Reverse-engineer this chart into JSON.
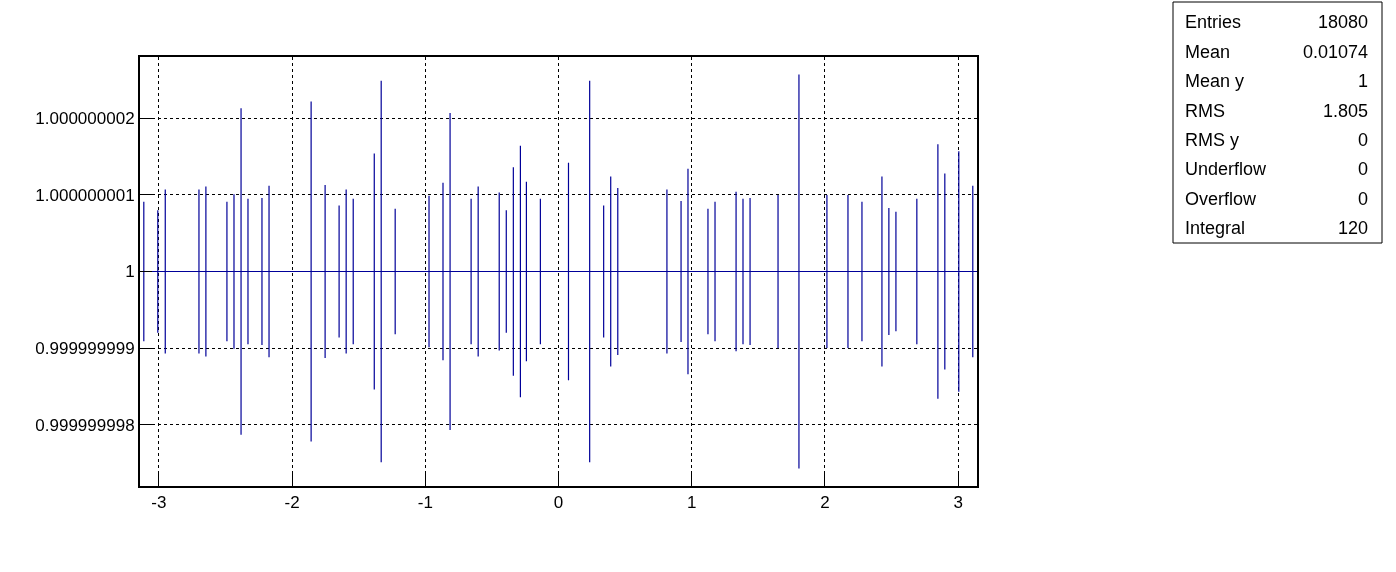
{
  "chart_data": {
    "type": "line",
    "xlim": [
      -3.1416,
      3.1416
    ],
    "xticks": [
      -3,
      -2,
      -1,
      0,
      1,
      2,
      3
    ],
    "ylim": [
      0.9999999972,
      1.0000000028
    ],
    "yticks": [
      {
        "value": 0.999999998,
        "label": "0.999999998"
      },
      {
        "value": 0.999999999,
        "label": "0.999999999"
      },
      {
        "value": 1,
        "label": "1"
      },
      {
        "value": 1.000000001,
        "label": "1.000000001"
      },
      {
        "value": 1.000000002,
        "label": "1.000000002"
      }
    ],
    "grid": true,
    "marker": "none",
    "line_style": "solid",
    "series": [
      {
        "color": "#000099",
        "x": [
          -3.1416,
          -3.113,
          -3.008,
          -2.952,
          -2.699,
          -2.647,
          -2.489,
          -2.436,
          -2.383,
          -2.331,
          -2.226,
          -2.173,
          -1.857,
          -1.752,
          -1.647,
          -1.594,
          -1.541,
          -1.383,
          -1.331,
          -1.226,
          -0.972,
          -0.867,
          -0.814,
          -0.656,
          -0.603,
          -0.445,
          -0.392,
          -0.339,
          -0.286,
          -0.241,
          -0.136,
          0.075,
          0.234,
          0.339,
          0.392,
          0.445,
          0.814,
          0.92,
          0.972,
          1.122,
          1.175,
          1.333,
          1.385,
          1.438,
          1.648,
          1.805,
          2.015,
          2.173,
          2.278,
          2.428,
          2.48,
          2.533,
          2.69,
          2.848,
          2.9,
          3.005,
          3.11,
          3.1416
        ],
        "values": [
          1,
          1,
          1,
          1,
          1,
          1,
          1,
          1,
          1,
          1,
          1,
          1,
          1,
          1,
          1,
          1,
          1,
          1,
          1,
          1,
          1,
          1,
          1,
          1,
          1,
          1,
          1,
          1,
          1,
          1,
          1,
          1,
          1,
          1,
          1,
          1,
          1,
          1,
          1,
          1,
          1,
          1,
          1,
          1,
          1,
          1,
          1,
          1,
          1,
          1,
          1,
          1,
          1,
          1,
          1,
          1,
          1,
          1
        ],
        "errors": [
          null,
          9.1e-10,
          8e-10,
          1.07e-09,
          1.07e-09,
          1.11e-09,
          9.1e-10,
          1.01e-09,
          2.13e-09,
          9.5e-10,
          9.6e-10,
          1.12e-09,
          2.22e-09,
          1.13e-09,
          8.6e-10,
          1.07e-09,
          9.5e-10,
          1.54e-09,
          2.49e-09,
          8.2e-10,
          9.9e-10,
          1.16e-09,
          2.07e-09,
          9.5e-10,
          1.11e-09,
          1.03e-09,
          8e-10,
          1.36e-09,
          1.64e-09,
          1.17e-09,
          9.5e-10,
          1.42e-09,
          2.49e-09,
          8.6e-10,
          1.24e-09,
          1.09e-09,
          1.07e-09,
          9.2e-10,
          1.34e-09,
          8.2e-10,
          9.1e-10,
          1.04e-09,
          9.5e-10,
          9.6e-10,
          1e-09,
          2.57e-09,
          1e-09,
          1e-09,
          9.1e-10,
          1.24e-09,
          8.3e-10,
          7.8e-10,
          9.5e-10,
          1.66e-09,
          1.28e-09,
          1.57e-09,
          1.12e-09,
          null
        ]
      }
    ],
    "annotations": [
      "Entries",
      "18080",
      "Mean",
      "0.01074",
      "Mean y",
      "1",
      "RMS",
      "1.805",
      "RMS y",
      "0",
      "Underflow",
      "0",
      "Overflow",
      "0",
      "Integral",
      "120"
    ]
  }
}
